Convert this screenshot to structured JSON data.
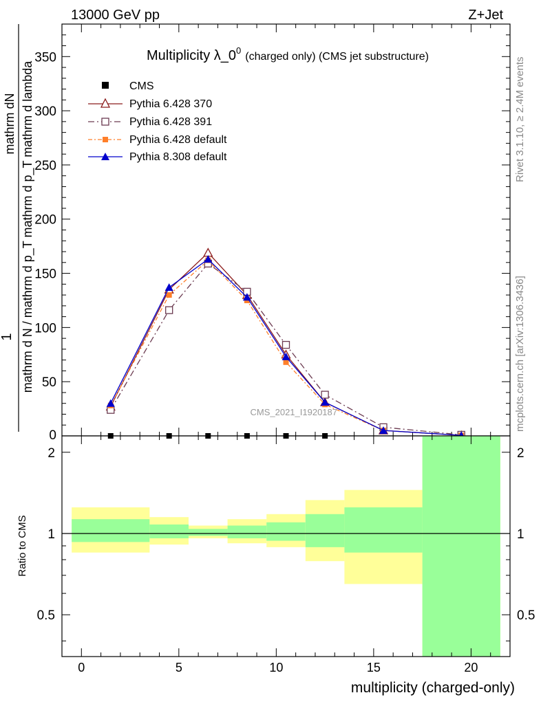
{
  "header": {
    "left": "13000 GeV pp",
    "right": "Z+Jet"
  },
  "side_labels": {
    "rivet": "Rivet 3.1.10, ≥ 2.4M events",
    "mcplots": "mcplots.cern.ch [arXiv:1306.3436]"
  },
  "chart_data": [
    {
      "type": "line",
      "title": "Multiplicity λ_0",
      "title_sup": "0",
      "title_suffix": "(charged only) (CMS jet substructure)",
      "ylabel_numerator": "mathrm dN",
      "ylabel_denominator": "mathrm d N / mathrm d p_T mathrm d p_T mathrm d lambda",
      "ylabel_prefix": "1",
      "watermark": "CMS_2021_I1920187",
      "xlim": [
        -1,
        22
      ],
      "ylim": [
        0,
        380
      ],
      "yticks": [
        50,
        100,
        150,
        200,
        250,
        300,
        350
      ],
      "x": [
        1.5,
        4.5,
        6.5,
        8.5,
        10.5,
        12.5,
        15.5,
        19.5
      ],
      "cms": {
        "name": "CMS",
        "x": [
          1.5,
          4.5,
          6.5,
          8.5,
          10.5,
          12.5
        ],
        "values": [
          0,
          0,
          0,
          0,
          0,
          0
        ],
        "color": "#000000"
      },
      "series": [
        {
          "name": "Pythia 6.428 370",
          "values": [
            27,
            135,
            169,
            130,
            75,
            31,
            5,
            0.5
          ],
          "color": "#8b1a1a",
          "marker": "triangle-open",
          "dash": ""
        },
        {
          "name": "Pythia 6.428 391",
          "values": [
            24,
            116,
            159,
            133,
            84,
            38,
            8,
            1
          ],
          "color": "#6b3a50",
          "marker": "square-open",
          "dash": "9 4 2 4"
        },
        {
          "name": "Pythia 6.428 default",
          "values": [
            28,
            130,
            162,
            125,
            68,
            29,
            5,
            0.5
          ],
          "color": "#ff7f2a",
          "marker": "square-filled",
          "dash": "6 3 2 3"
        },
        {
          "name": "Pythia 8.308 default",
          "values": [
            30,
            137,
            163,
            128,
            73,
            31,
            5,
            0.5
          ],
          "color": "#0000cc",
          "marker": "triangle-filled",
          "dash": ""
        }
      ]
    },
    {
      "type": "area",
      "ylabel": "Ratio to CMS",
      "xlabel": "multiplicity (charged-only)",
      "xlim": [
        -1,
        22
      ],
      "ylim": [
        0.35,
        2.3
      ],
      "xticks": [
        0,
        5,
        10,
        15,
        20
      ],
      "yticks": [
        0.5,
        1,
        2
      ],
      "ratio_line": 1,
      "bins": [
        {
          "x0": -0.5,
          "x1": 3.5,
          "yellow": [
            0.85,
            1.25
          ],
          "green": [
            0.93,
            1.13
          ]
        },
        {
          "x0": 3.5,
          "x1": 5.5,
          "yellow": [
            0.91,
            1.15
          ],
          "green": [
            0.96,
            1.08
          ]
        },
        {
          "x0": 5.5,
          "x1": 7.5,
          "yellow": [
            0.96,
            1.07
          ],
          "green": [
            0.98,
            1.04
          ]
        },
        {
          "x0": 7.5,
          "x1": 9.5,
          "yellow": [
            0.92,
            1.13
          ],
          "green": [
            0.96,
            1.07
          ]
        },
        {
          "x0": 9.5,
          "x1": 11.5,
          "yellow": [
            0.89,
            1.18
          ],
          "green": [
            0.94,
            1.1
          ]
        },
        {
          "x0": 11.5,
          "x1": 13.5,
          "yellow": [
            0.79,
            1.33
          ],
          "green": [
            0.89,
            1.18
          ]
        },
        {
          "x0": 13.5,
          "x1": 17.5,
          "yellow": [
            0.65,
            1.45
          ],
          "green": [
            0.85,
            1.25
          ]
        },
        {
          "x0": 17.5,
          "x1": 21.5,
          "yellow": [
            0.35,
            2.3
          ],
          "green": [
            0.35,
            2.3
          ]
        }
      ],
      "colors": {
        "yellow": "#ffff99",
        "green": "#99ff99"
      }
    }
  ]
}
